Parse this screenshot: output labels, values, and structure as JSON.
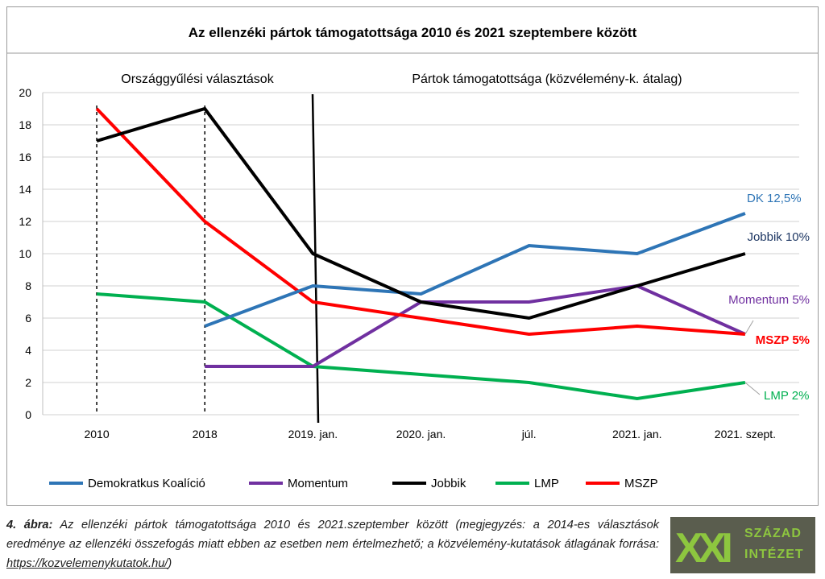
{
  "chart_data": {
    "type": "line",
    "title": "Az ellenzéki pártok támogatottsága 2010 és 2021 szeptembere között",
    "section_labels": [
      "Országgyűlési választások",
      "Pártok támogatottsága (közvélemény-k. átalag)"
    ],
    "categories": [
      "2010",
      "2018",
      "2019. jan.",
      "2020. jan.",
      "júl.",
      "2021. jan.",
      "2021. szept."
    ],
    "ylim": [
      0,
      20
    ],
    "yticks": [
      "0",
      "2",
      "4",
      "6",
      "8",
      "10",
      "12",
      "14",
      "16",
      "18",
      "20"
    ],
    "grid": true,
    "legend_position": "bottom",
    "series": [
      {
        "name": "Demokratkus Koalíció",
        "color": "#2e75b6",
        "values": [
          null,
          5.5,
          8,
          7.5,
          10.5,
          10,
          12.5
        ],
        "end_label": "DK   12,5%"
      },
      {
        "name": "Momentum",
        "color": "#7030a0",
        "values": [
          null,
          3,
          3,
          7,
          7,
          8,
          5
        ],
        "end_label": "Momentum 5%"
      },
      {
        "name": "Jobbik",
        "color": "#000000",
        "values": [
          17,
          19,
          10,
          7,
          6,
          8,
          10
        ],
        "end_label": "Jobbik 10%"
      },
      {
        "name": "LMP",
        "color": "#00b050",
        "values": [
          7.5,
          7,
          3,
          2.5,
          2,
          1,
          2
        ],
        "end_label": "LMP 2%"
      },
      {
        "name": "MSZP",
        "color": "#ff0000",
        "values": [
          19,
          12,
          7,
          6,
          5,
          5.5,
          5
        ],
        "end_label": "MSZP 5%"
      }
    ]
  },
  "caption": {
    "prefix": "4. ábra:",
    "text": " Az ellenzéki pártok támogatottsága 2010 és 2021.szeptember között (megjegyzés: a 2014-es választások eredménye az ellenzéki összefogás miatt ebben az esetben nem értelmezhető; a közvélemény-kutatások átlagának forrása: ",
    "link": "https://kozvelemenykutatok.hu/",
    "suffix": ")"
  },
  "logo": {
    "mark": "XXI",
    "line1": "SZÁZAD",
    "line2": "INTÉZET",
    "colors": {
      "background": "#5a5d4e",
      "accent": "#8dc63f"
    }
  }
}
